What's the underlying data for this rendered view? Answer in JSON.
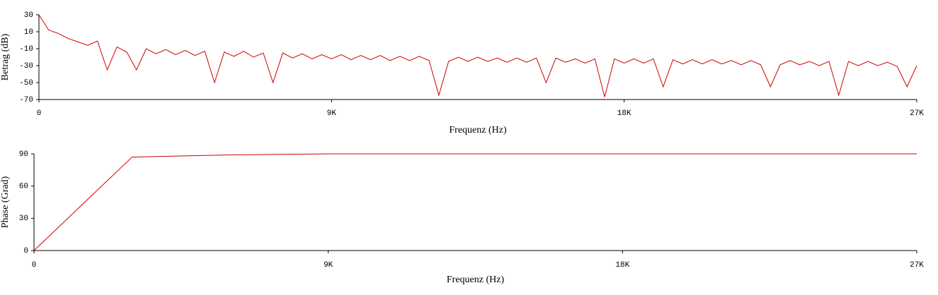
{
  "chart_data": [
    {
      "type": "line",
      "x_label": "Frequenz (Hz)",
      "y_label": "Betrag (dB)",
      "color": "#cc0000",
      "xlim": [
        0,
        27000
      ],
      "xticks": [
        0,
        {
          "value": 9000,
          "label": "9K"
        },
        {
          "value": 18000,
          "label": "18K"
        },
        {
          "value": 27000,
          "label": "27K"
        }
      ],
      "ylim": [
        -70,
        30
      ],
      "yticks": [
        30,
        10,
        -10,
        -30,
        -50,
        -70
      ],
      "x": [
        0,
        300,
        600,
        900,
        1200,
        1500,
        1800,
        2100,
        2400,
        2700,
        3000,
        3300,
        3600,
        3900,
        4200,
        4500,
        4800,
        5100,
        5400,
        5700,
        6000,
        6300,
        6600,
        6900,
        7200,
        7500,
        7800,
        8100,
        8400,
        8700,
        9000,
        9300,
        9600,
        9900,
        10200,
        10500,
        10800,
        11100,
        11400,
        11700,
        12000,
        12300,
        12600,
        12900,
        13200,
        13500,
        13800,
        14100,
        14400,
        14700,
        15000,
        15300,
        15600,
        15900,
        16200,
        16500,
        16800,
        17100,
        17400,
        17700,
        18000,
        18300,
        18600,
        18900,
        19200,
        19500,
        19800,
        20100,
        20400,
        20700,
        21000,
        21300,
        21600,
        21900,
        22200,
        22500,
        22800,
        23100,
        23400,
        23700,
        24000,
        24300,
        24600,
        24900,
        25200,
        25500,
        25800,
        26100,
        26400,
        26700,
        27000
      ],
      "values": [
        30,
        12,
        8,
        2,
        -2,
        -6,
        -1,
        -35,
        -8,
        -14,
        -35,
        -10,
        -16,
        -11,
        -17,
        -12,
        -18,
        -13,
        -50,
        -14,
        -19,
        -13,
        -20,
        -15,
        -50,
        -15,
        -21,
        -16,
        -22,
        -17,
        -22,
        -17,
        -23,
        -18,
        -23,
        -18,
        -24,
        -19,
        -24,
        -19,
        -24,
        -65,
        -25,
        -20,
        -25,
        -20,
        -25,
        -21,
        -26,
        -21,
        -26,
        -21,
        -50,
        -21,
        -26,
        -22,
        -27,
        -22,
        -67,
        -22,
        -27,
        -22,
        -27,
        -22,
        -55,
        -23,
        -28,
        -23,
        -28,
        -23,
        -28,
        -24,
        -29,
        -24,
        -29,
        -55,
        -29,
        -24,
        -29,
        -25,
        -30,
        -25,
        -65,
        -25,
        -30,
        -25,
        -30,
        -26,
        -31,
        -55,
        -30
      ]
    },
    {
      "type": "line",
      "x_label": "Frequenz (Hz)",
      "y_label": "Phase (Grad)",
      "color": "#cc0000",
      "xlim": [
        0,
        27000
      ],
      "xticks": [
        0,
        {
          "value": 9000,
          "label": "9K"
        },
        {
          "value": 18000,
          "label": "18K"
        },
        {
          "value": 27000,
          "label": "27K"
        }
      ],
      "ylim": [
        0,
        90
      ],
      "yticks": [
        0,
        30,
        60,
        90
      ],
      "x": [
        0,
        3000,
        4500,
        6000,
        9000,
        18000,
        27000
      ],
      "values": [
        0,
        87,
        88,
        89,
        90,
        90,
        90
      ]
    }
  ]
}
